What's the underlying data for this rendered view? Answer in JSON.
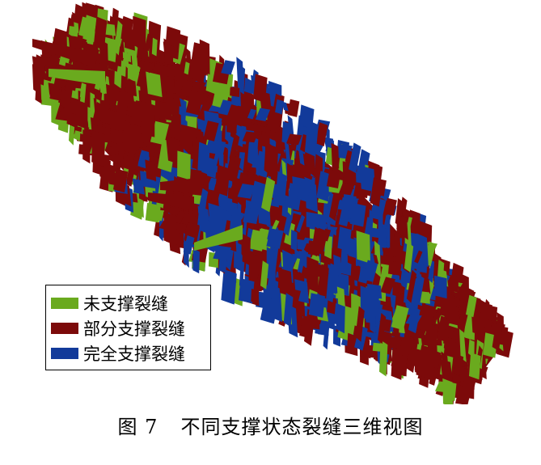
{
  "legend": {
    "items": [
      {
        "label": "未支撑裂缝",
        "color": "#6aaa1e"
      },
      {
        "label": "部分支撑裂缝",
        "color": "#7c0a0a"
      },
      {
        "label": "完全支撑裂缝",
        "color": "#123a9a"
      }
    ]
  },
  "caption": {
    "figure_number": "图 7",
    "title": "不同支撑状态裂缝三维视图"
  },
  "colors": {
    "unpropped": "#6aaa1e",
    "partially_propped": "#7c0a0a",
    "fully_propped": "#123a9a",
    "background": "#ffffff"
  }
}
